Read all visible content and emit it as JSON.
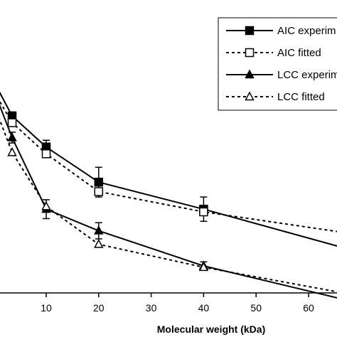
{
  "chart_data": {
    "type": "line",
    "xlabel": "Molecular weight (kDa)",
    "ylabel": "",
    "title": "",
    "xlim": [
      -1.2,
      68.5
    ],
    "ylim": [
      0,
      100
    ],
    "xticks": [
      10,
      20,
      30,
      40,
      50,
      60
    ],
    "grid": false,
    "legend_position": "top-right",
    "series": [
      {
        "name": "AIC experimental",
        "line": "solid",
        "marker": "square-filled",
        "x": [
          -1,
          3.5,
          10,
          20,
          40,
          68
        ],
        "y": [
          82,
          65.5,
          54,
          41,
          31,
          16
        ],
        "yerr": [
          0,
          1.5,
          2.5,
          5.5,
          4.5,
          0
        ]
      },
      {
        "name": "AIC fitted",
        "line": "dashed",
        "marker": "square-open",
        "x": [
          -1,
          3.5,
          10,
          20,
          40,
          68
        ],
        "y": [
          78,
          63,
          51.5,
          37.5,
          30,
          22
        ],
        "yerr": []
      },
      {
        "name": "LCC experimental",
        "line": "solid",
        "marker": "triangle-filled",
        "x": [
          -1,
          3.5,
          10,
          20,
          40,
          68
        ],
        "y": [
          80,
          57.5,
          31,
          23,
          10,
          -3
        ],
        "yerr": [
          0,
          2,
          3.5,
          3,
          1.5,
          0
        ]
      },
      {
        "name": "LCC fitted",
        "line": "dashed",
        "marker": "triangle-open",
        "x": [
          -1,
          3.5,
          10,
          20,
          40,
          68
        ],
        "y": [
          75,
          52,
          32,
          18,
          9.5,
          -0.5
        ],
        "yerr": []
      }
    ]
  },
  "legend": {
    "items": [
      {
        "label": "AIC experim"
      },
      {
        "label": "AIC fitted"
      },
      {
        "label": "LCC experim"
      },
      {
        "label": "LCC fitted"
      }
    ]
  }
}
